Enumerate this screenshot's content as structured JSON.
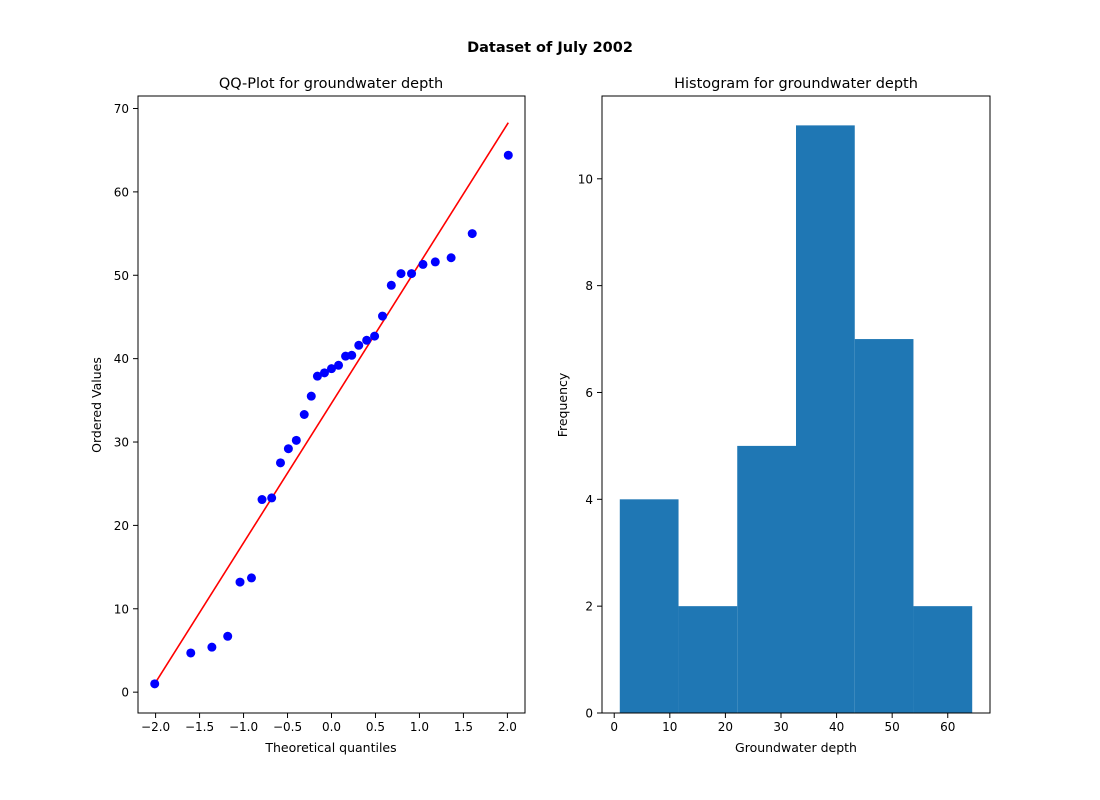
{
  "figure": {
    "suptitle": "Dataset of July 2002"
  },
  "colors": {
    "points": "#0000ff",
    "fit_line": "#ff0000",
    "bars": "#1f77b4",
    "axes": "#000000"
  },
  "chart_data": [
    {
      "type": "scatter",
      "title": "QQ-Plot for groundwater depth",
      "xlabel": "Theoretical quantiles",
      "ylabel": "Ordered Values",
      "xlim": [
        -2.2,
        2.2
      ],
      "ylim": [
        -2.5,
        71.5
      ],
      "xticks": [
        -2.0,
        -1.5,
        -1.0,
        -0.5,
        0.0,
        0.5,
        1.0,
        1.5,
        2.0
      ],
      "xtick_labels": [
        "−2.0",
        "−1.5",
        "−1.0",
        "−0.5",
        "0.0",
        "0.5",
        "1.0",
        "1.5",
        "2.0"
      ],
      "yticks": [
        0,
        10,
        20,
        30,
        40,
        50,
        60,
        70
      ],
      "ytick_labels": [
        "0",
        "10",
        "20",
        "30",
        "40",
        "50",
        "60",
        "70"
      ],
      "grid": false,
      "points": [
        {
          "x": -2.01,
          "y": 1.0
        },
        {
          "x": -1.6,
          "y": 4.7
        },
        {
          "x": -1.36,
          "y": 5.4
        },
        {
          "x": -1.18,
          "y": 6.7
        },
        {
          "x": -1.04,
          "y": 13.2
        },
        {
          "x": -0.91,
          "y": 13.7
        },
        {
          "x": -0.79,
          "y": 23.1
        },
        {
          "x": -0.68,
          "y": 23.3
        },
        {
          "x": -0.58,
          "y": 27.5
        },
        {
          "x": -0.49,
          "y": 29.2
        },
        {
          "x": -0.4,
          "y": 30.2
        },
        {
          "x": -0.31,
          "y": 33.3
        },
        {
          "x": -0.23,
          "y": 35.5
        },
        {
          "x": -0.16,
          "y": 37.9
        },
        {
          "x": -0.08,
          "y": 38.3
        },
        {
          "x": 0.0,
          "y": 38.8
        },
        {
          "x": 0.08,
          "y": 39.2
        },
        {
          "x": 0.16,
          "y": 40.3
        },
        {
          "x": 0.23,
          "y": 40.4
        },
        {
          "x": 0.31,
          "y": 41.6
        },
        {
          "x": 0.4,
          "y": 42.2
        },
        {
          "x": 0.49,
          "y": 42.7
        },
        {
          "x": 0.58,
          "y": 45.1
        },
        {
          "x": 0.68,
          "y": 48.8
        },
        {
          "x": 0.79,
          "y": 50.2
        },
        {
          "x": 0.91,
          "y": 50.2
        },
        {
          "x": 1.04,
          "y": 51.3
        },
        {
          "x": 1.18,
          "y": 51.6
        },
        {
          "x": 1.36,
          "y": 52.1
        },
        {
          "x": 1.6,
          "y": 55.0
        },
        {
          "x": 2.01,
          "y": 64.4
        }
      ],
      "fit_line": [
        {
          "x": -2.01,
          "y": 1.0
        },
        {
          "x": 2.01,
          "y": 68.3
        }
      ]
    },
    {
      "type": "bar",
      "title": "Histogram for groundwater depth",
      "xlabel": "Groundwater depth",
      "ylabel": "Frequency",
      "xlim": [
        -2.2,
        67.6
      ],
      "ylim": [
        0,
        11.55
      ],
      "xticks": [
        0,
        10,
        20,
        30,
        40,
        50,
        60
      ],
      "xtick_labels": [
        "0",
        "10",
        "20",
        "30",
        "40",
        "50",
        "60"
      ],
      "yticks": [
        0,
        2,
        4,
        6,
        8,
        10
      ],
      "ytick_labels": [
        "0",
        "2",
        "4",
        "6",
        "8",
        "10"
      ],
      "grid": false,
      "bin_edges": [
        1.0,
        11.57,
        22.13,
        32.7,
        43.27,
        53.83,
        64.4
      ],
      "counts": [
        4,
        2,
        5,
        11,
        7,
        2
      ]
    }
  ]
}
